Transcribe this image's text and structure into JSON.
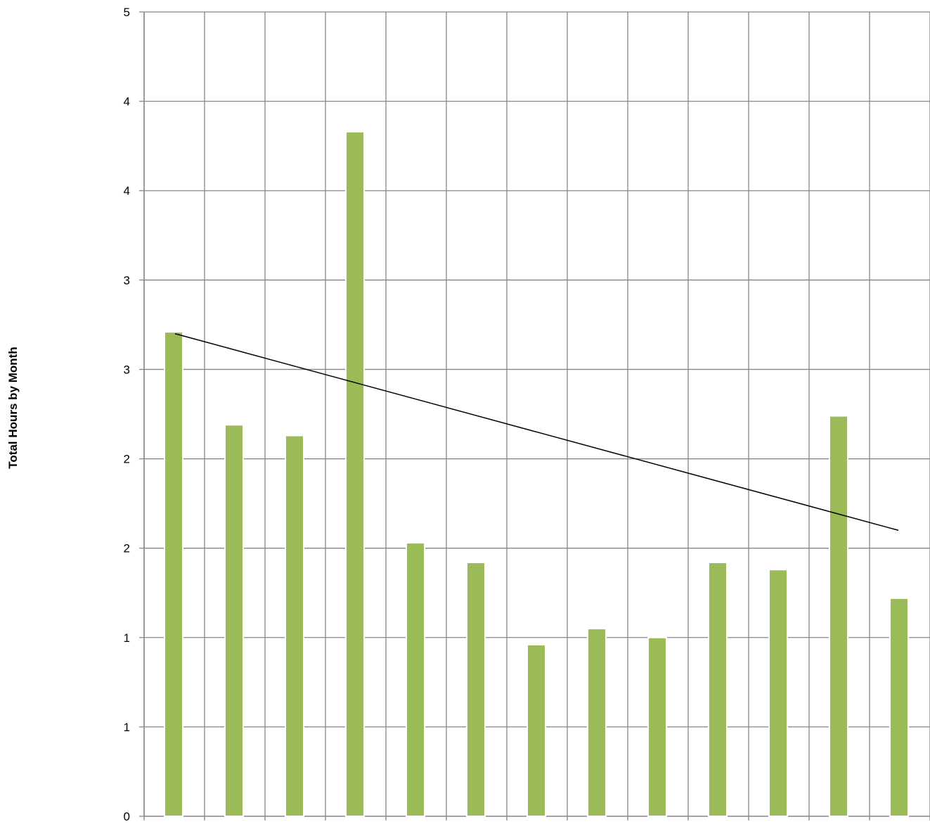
{
  "chart_data": {
    "type": "bar",
    "ylabel": "Total Hours by Month",
    "ylim": [
      0,
      4.5
    ],
    "y_tick_values": [
      0,
      0.5,
      1,
      1.5,
      2,
      2.5,
      3,
      3.5,
      4,
      4.5
    ],
    "y_tick_labels": [
      "0",
      "1",
      "1",
      "2",
      "2",
      "3",
      "3",
      "4",
      "4",
      "5"
    ],
    "categories": [
      "",
      "",
      "",
      "",
      "",
      "",
      "",
      "",
      "",
      "",
      "",
      "",
      ""
    ],
    "values": [
      2.71,
      2.19,
      2.13,
      3.83,
      1.53,
      1.42,
      0.96,
      1.05,
      1.0,
      1.42,
      1.38,
      2.24,
      1.22
    ],
    "trendline": {
      "type": "linear",
      "start": 2.7,
      "end": 1.6
    },
    "grid": true,
    "colors": {
      "bar": "#9bbb59",
      "bar_edge": "#ffffff",
      "grid": "#868686",
      "trendline": "#000000"
    }
  }
}
